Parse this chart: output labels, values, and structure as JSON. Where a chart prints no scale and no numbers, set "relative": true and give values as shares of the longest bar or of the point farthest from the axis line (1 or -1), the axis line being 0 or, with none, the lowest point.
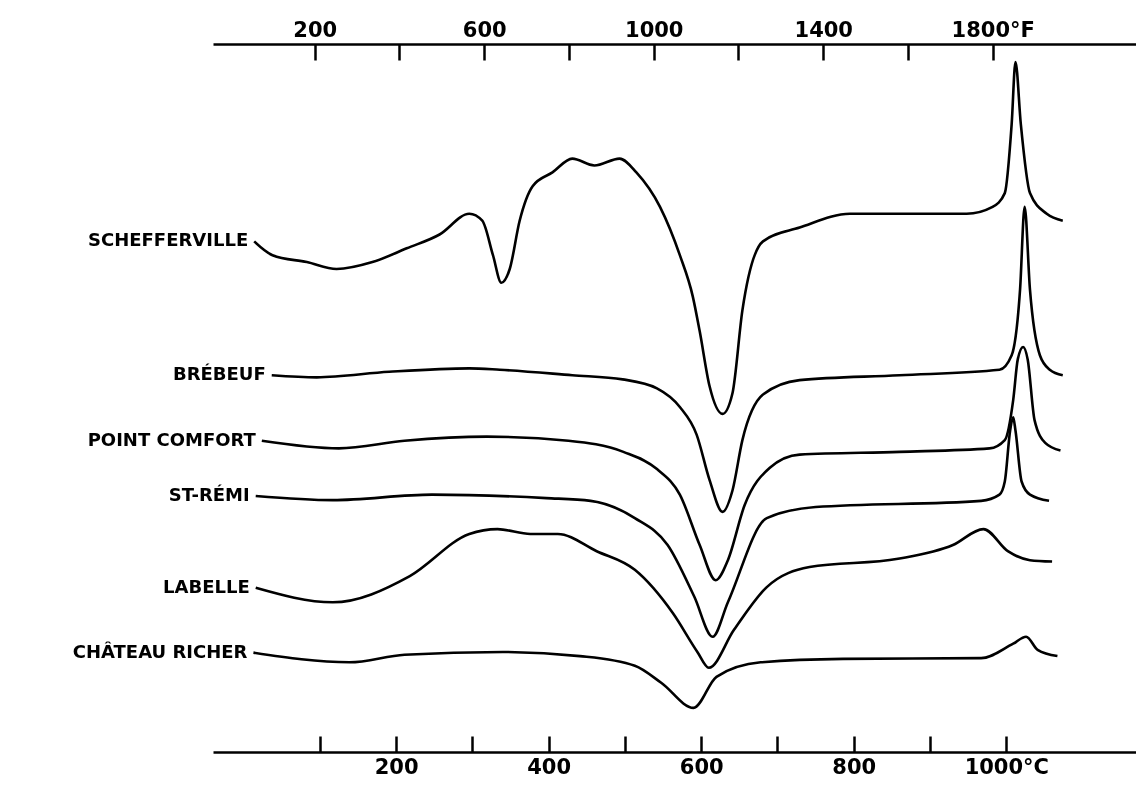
{
  "chart_data": {
    "type": "line",
    "relative": true,
    "xlim": [
      -40,
      1170
    ],
    "xticks": [
      {
        "value": 100,
        "label": null
      },
      200,
      {
        "value": 300,
        "label": null
      },
      400,
      {
        "value": 500,
        "label": null
      },
      600,
      {
        "value": 700,
        "label": null
      },
      800,
      {
        "value": 900,
        "label": null
      },
      {
        "value": 1000,
        "label": "1000°C"
      }
    ],
    "x2lim": [
      -40,
      2138
    ],
    "x2ticks": [
      200,
      {
        "value": 400,
        "label": null
      },
      600,
      {
        "value": 800,
        "label": null
      },
      1000,
      {
        "value": 1200,
        "label": null
      },
      1400,
      {
        "value": 1600,
        "label": null
      },
      {
        "value": 1800,
        "label": "1800°F"
      }
    ],
    "series": [
      {
        "name": "SCHEFFERVILLE",
        "color": "#000000",
        "x": [
          14,
          38,
          83,
          122,
          169,
          214,
          257,
          296,
          313,
          327,
          338,
          349,
          362,
          379,
          405,
          431,
          460,
          493,
          515,
          546,
          572,
          589,
          598,
          611,
          628,
          641,
          654,
          681,
          729,
          795,
          860,
          948,
          982,
          998,
          1007,
          1012,
          1019,
          1031,
          1053,
          1074
        ],
        "values": [
          0.74,
          0.72,
          0.71,
          0.7,
          0.71,
          0.73,
          0.75,
          0.78,
          0.77,
          0.72,
          0.68,
          0.7,
          0.77,
          0.82,
          0.84,
          0.86,
          0.85,
          0.86,
          0.84,
          0.79,
          0.72,
          0.66,
          0.61,
          0.53,
          0.49,
          0.52,
          0.64,
          0.74,
          0.76,
          0.78,
          0.78,
          0.78,
          0.79,
          0.81,
          0.91,
          1,
          0.91,
          0.81,
          0.78,
          0.77
        ]
      },
      {
        "name": "BRÉBEUF",
        "color": "#000000",
        "x": [
          37,
          96,
          191,
          296,
          336,
          431,
          497,
          542,
          572,
          594,
          611,
          628,
          641,
          654,
          681,
          729,
          860,
          991,
          1007,
          1018,
          1024,
          1031,
          1044,
          1057,
          1074
        ],
        "values": [
          0.546,
          0.543,
          0.551,
          0.556,
          0.554,
          0.546,
          0.54,
          0.527,
          0.5,
          0.46,
          0.394,
          0.348,
          0.379,
          0.452,
          0.518,
          0.539,
          0.546,
          0.554,
          0.575,
          0.67,
          0.79,
          0.67,
          0.575,
          0.554,
          0.546
        ]
      },
      {
        "name": "POINT COMFORT",
        "color": "#000000",
        "x": [
          24,
          125,
          211,
          319,
          426,
          498,
          542,
          572,
          598,
          619,
          635,
          657,
          690,
          729,
          860,
          978,
          998,
          1009,
          1015,
          1022,
          1028,
          1037,
          1051,
          1071
        ],
        "values": [
          0.451,
          0.44,
          0.451,
          0.457,
          0.451,
          0.435,
          0.41,
          0.373,
          0.3,
          0.249,
          0.278,
          0.358,
          0.412,
          0.431,
          0.435,
          0.44,
          0.452,
          0.51,
          0.569,
          0.587,
          0.569,
          0.481,
          0.448,
          0.437
        ]
      },
      {
        "name": "ST-RÉMI",
        "color": "#000000",
        "x": [
          16,
          117,
          247,
          397,
          455,
          513,
          556,
          591,
          615,
          635,
          686,
          750,
          967,
          991,
          998,
          1005,
          1009,
          1012,
          1020,
          1031,
          1056
        ],
        "values": [
          0.371,
          0.365,
          0.373,
          0.368,
          0.364,
          0.339,
          0.3,
          0.225,
          0.167,
          0.217,
          0.339,
          0.355,
          0.364,
          0.373,
          0.392,
          0.466,
          0.485,
          0.466,
          0.392,
          0.373,
          0.364
        ]
      },
      {
        "name": "LABELLE",
        "color": "#000000",
        "x": [
          16,
          117,
          218,
          296,
          333,
          376,
          412,
          463,
          513,
          563,
          595,
          610,
          643,
          686,
          742,
          858,
          930,
          970,
          1002,
          1031,
          1060
        ],
        "values": [
          0.238,
          0.217,
          0.255,
          0.316,
          0.323,
          0.316,
          0.316,
          0.291,
          0.264,
          0.201,
          0.145,
          0.122,
          0.177,
          0.239,
          0.268,
          0.28,
          0.3,
          0.323,
          0.291,
          0.278,
          0.276
        ]
      },
      {
        "name": "CHÂTEAU RICHER",
        "color": "#000000",
        "x": [
          13,
          139,
          211,
          340,
          441,
          513,
          548,
          590,
          620,
          678,
          786,
          967,
          1009,
          1026,
          1041,
          1067
        ],
        "values": [
          0.144,
          0.13,
          0.141,
          0.145,
          0.139,
          0.125,
          0.1,
          0.064,
          0.109,
          0.13,
          0.135,
          0.136,
          0.157,
          0.167,
          0.148,
          0.139
        ]
      }
    ]
  }
}
